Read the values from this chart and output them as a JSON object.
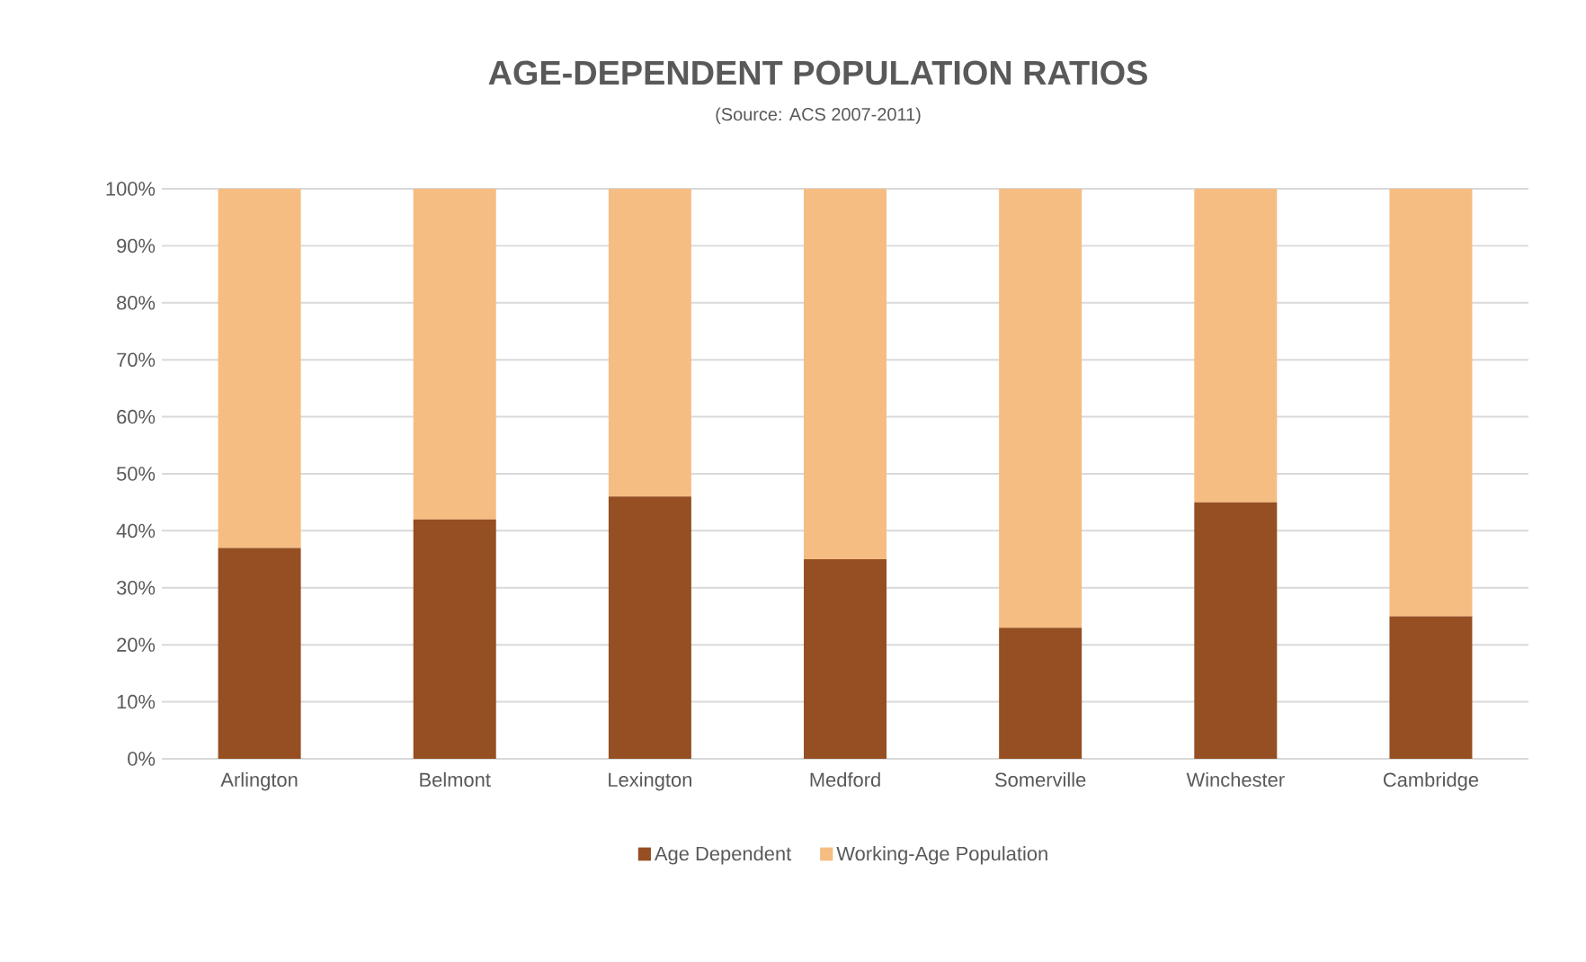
{
  "chart_data": {
    "type": "bar",
    "title": "AGE-DEPENDENT POPULATION RATIOS",
    "subtitle": "(Source: ACS 2007-2011)",
    "categories": [
      "Arlington",
      "Belmont",
      "Lexington",
      "Medford",
      "Somerville",
      "Winchester",
      "Cambridge"
    ],
    "stacked": true,
    "series": [
      {
        "name": "Age Dependent",
        "color": "#954f22",
        "values": [
          37,
          42,
          46,
          35,
          23,
          45,
          25
        ]
      },
      {
        "name": "Working-Age Population",
        "color": "#f5bd82",
        "values": [
          63,
          58,
          54,
          65,
          77,
          55,
          75
        ]
      }
    ],
    "ylim": [
      0,
      100
    ],
    "yticks": [
      {
        "value": 0,
        "label": "0%"
      },
      {
        "value": 10,
        "label": "10%"
      },
      {
        "value": 20,
        "label": "20%"
      },
      {
        "value": 30,
        "label": "30%"
      },
      {
        "value": 40,
        "label": "40%"
      },
      {
        "value": 50,
        "label": "50%"
      },
      {
        "value": 60,
        "label": "60%"
      },
      {
        "value": 70,
        "label": "70%"
      },
      {
        "value": 80,
        "label": "80%"
      },
      {
        "value": 90,
        "label": "90%"
      },
      {
        "value": 100,
        "label": "100%"
      }
    ],
    "grid": "y",
    "legend": "bottom"
  }
}
